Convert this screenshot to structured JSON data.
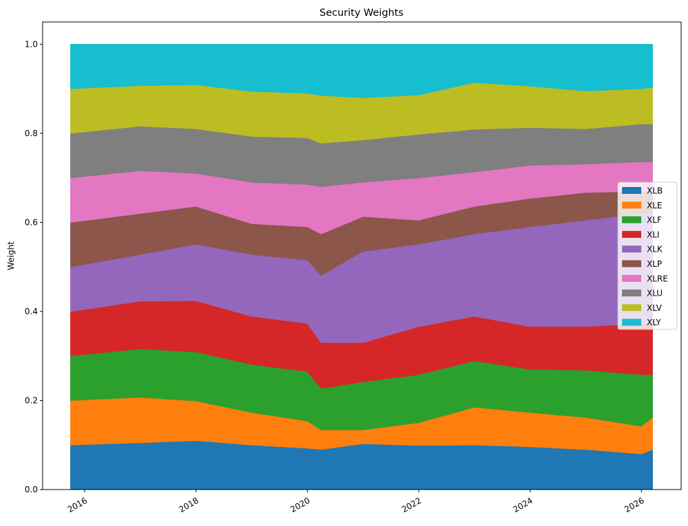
{
  "chart_data": {
    "type": "area",
    "stacked": true,
    "title": "Security Weights",
    "xlabel": "",
    "ylabel": "Weight",
    "xlim": [
      "2015-04-01",
      "2026-09-18"
    ],
    "ylim": [
      0,
      1.05
    ],
    "x_ticks": [
      "2016",
      "2018",
      "2020",
      "2022",
      "2024",
      "2026"
    ],
    "y_ticks": [
      "0.0",
      "0.2",
      "0.4",
      "0.6",
      "0.8",
      "1.0"
    ],
    "grid": false,
    "legend_position": "center-right",
    "x": [
      "2015-10-01",
      "2017-01-01",
      "2018-01-01",
      "2019-01-01",
      "2020-01-01",
      "2020-04-01",
      "2021-01-01",
      "2022-01-01",
      "2023-01-01",
      "2024-01-01",
      "2025-01-01",
      "2026-01-01",
      "2026-03-15"
    ],
    "series": [
      {
        "name": "XLB",
        "color": "#1f77b4",
        "values": [
          0.1,
          0.105,
          0.11,
          0.1,
          0.093,
          0.09,
          0.103,
          0.099,
          0.1,
          0.096,
          0.09,
          0.08,
          0.09
        ]
      },
      {
        "name": "XLE",
        "color": "#ff7f0e",
        "values": [
          0.1,
          0.102,
          0.089,
          0.073,
          0.061,
          0.044,
          0.031,
          0.051,
          0.085,
          0.077,
          0.072,
          0.062,
          0.072
        ]
      },
      {
        "name": "XLF",
        "color": "#2ca02c",
        "values": [
          0.1,
          0.109,
          0.11,
          0.108,
          0.111,
          0.093,
          0.108,
          0.108,
          0.104,
          0.097,
          0.106,
          0.116,
          0.096
        ]
      },
      {
        "name": "XLI",
        "color": "#d62728",
        "values": [
          0.1,
          0.107,
          0.115,
          0.108,
          0.108,
          0.103,
          0.088,
          0.108,
          0.1,
          0.096,
          0.098,
          0.115,
          0.115
        ]
      },
      {
        "name": "XLK",
        "color": "#9467bd",
        "values": [
          0.1,
          0.105,
          0.127,
          0.139,
          0.142,
          0.151,
          0.205,
          0.185,
          0.185,
          0.224,
          0.239,
          0.247,
          0.247
        ]
      },
      {
        "name": "XLP",
        "color": "#8c564b",
        "values": [
          0.1,
          0.092,
          0.085,
          0.069,
          0.075,
          0.093,
          0.078,
          0.054,
          0.062,
          0.064,
          0.062,
          0.05,
          0.05
        ]
      },
      {
        "name": "XLRE",
        "color": "#e377c2",
        "values": [
          0.1,
          0.096,
          0.074,
          0.093,
          0.095,
          0.106,
          0.077,
          0.095,
          0.077,
          0.074,
          0.064,
          0.066,
          0.066
        ]
      },
      {
        "name": "XLU",
        "color": "#7f7f7f",
        "values": [
          0.1,
          0.1,
          0.1,
          0.103,
          0.105,
          0.098,
          0.095,
          0.098,
          0.096,
          0.085,
          0.079,
          0.085,
          0.085
        ]
      },
      {
        "name": "XLV",
        "color": "#bcbd22",
        "values": [
          0.1,
          0.091,
          0.099,
          0.101,
          0.1,
          0.107,
          0.095,
          0.088,
          0.105,
          0.093,
          0.085,
          0.079,
          0.082
        ]
      },
      {
        "name": "XLY",
        "color": "#17becf",
        "values": [
          0.1,
          0.093,
          0.091,
          0.106,
          0.11,
          0.115,
          0.12,
          0.114,
          0.086,
          0.094,
          0.105,
          0.1,
          0.097
        ]
      }
    ]
  }
}
